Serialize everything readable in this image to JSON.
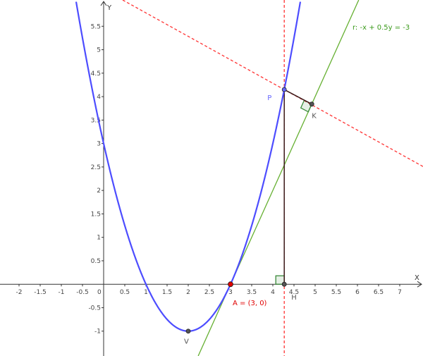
{
  "view": {
    "xlim": [
      -2.45,
      7.55
    ],
    "ylim": [
      -1.53,
      6.06
    ]
  },
  "axes": {
    "x_label": "X",
    "y_label": "Y",
    "x_ticks": [
      "-2",
      "-1.5",
      "-1",
      "-0.5",
      "0.5",
      "1",
      "1.5",
      "2",
      "2.5",
      "3",
      "3.5",
      "4",
      "4.5",
      "5",
      "5.5",
      "6",
      "6.5",
      "7"
    ],
    "y_ticks": [
      "-1",
      "-0.5",
      "0.5",
      "1",
      "1.5",
      "2",
      "2.5",
      "3",
      "3.5",
      "4",
      "4.5",
      "5",
      "5.5"
    ],
    "origin_label": "0"
  },
  "parabola": {
    "a": 1,
    "b": -4,
    "c": 3,
    "color": "#4d4dff"
  },
  "tangent_line": {
    "label": "r: -x + 0.5y = -3",
    "a": -1,
    "b": 0.5,
    "c": -3,
    "color": "#66b032"
  },
  "perpendicular_line": {
    "slope": -0.5,
    "color": "#ff3333"
  },
  "vertical_line": {
    "x": 4.27,
    "color": "#ff3333"
  },
  "points": {
    "A": {
      "label": "A = (3, 0)",
      "x": 3,
      "y": 0,
      "color": "#e00000"
    },
    "V": {
      "label": "V",
      "x": 2,
      "y": -1,
      "color": "#555555"
    },
    "P": {
      "label": "P",
      "x": 4.27,
      "y": 4.15,
      "color": "#6666ff"
    },
    "K": {
      "label": "K",
      "x": 4.92,
      "y": 3.84,
      "color": "#555555"
    },
    "H": {
      "label": "H",
      "x": 4.27,
      "y": 0,
      "color": "#555555"
    }
  }
}
